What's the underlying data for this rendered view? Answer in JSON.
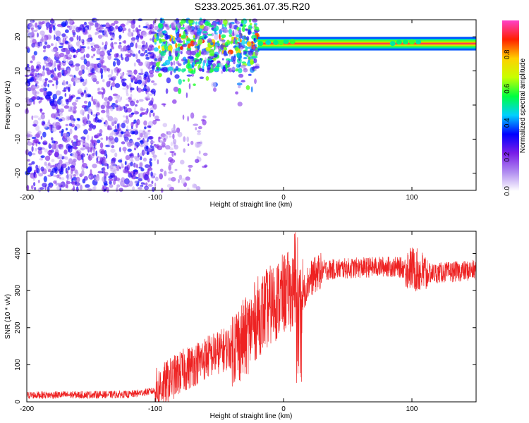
{
  "title": "S233.2025.361.07.35.R20",
  "chart_data": [
    {
      "type": "heatmap",
      "name": "spectrogram",
      "xlabel": "Height of straight line (km)",
      "ylabel": "Frequency (Hz)",
      "xlim": [
        -200,
        150
      ],
      "ylim": [
        -25,
        25
      ],
      "xticks": [
        -200,
        -100,
        0,
        100
      ],
      "yticks": [
        -20,
        -10,
        0,
        10,
        20
      ],
      "colorbar": {
        "label": "Normalized spectral amplitude",
        "range": [
          0,
          1
        ],
        "ticks": [
          "0.0",
          "0.2",
          "0.4",
          "0.6",
          "0.8"
        ],
        "colors": [
          "#ffffff",
          "#b08cf0",
          "#7a1ee8",
          "#0000ff",
          "#00d0ff",
          "#00ff40",
          "#c8ff00",
          "#ffd000",
          "#ff2000",
          "#ff40c8"
        ]
      },
      "signal": {
        "frequency_hz": 18,
        "start_km": -20,
        "end_km": 150,
        "amplitude": 1.0
      },
      "noise": {
        "start_km": -200,
        "end_km": -100,
        "amplitude": 0.3
      },
      "transition": {
        "start_km": -100,
        "end_km": -20,
        "frequency_range_hz": [
          10,
          25
        ],
        "amplitude": 0.6
      }
    },
    {
      "type": "line",
      "name": "snr",
      "xlabel": "Height of straight line (km)",
      "ylabel": "SNR (10 * v/v)",
      "xlim": [
        -200,
        150
      ],
      "ylim": [
        0,
        460
      ],
      "xticks": [
        -200,
        -100,
        0,
        100
      ],
      "yticks": [
        0,
        100,
        200,
        300,
        400
      ],
      "color": "#ee2222",
      "profile": {
        "x": [
          -200,
          -120,
          -100,
          -90,
          -80,
          -60,
          -40,
          -30,
          -20,
          -10,
          0,
          5,
          10,
          15,
          20,
          30,
          50,
          80,
          100,
          110,
          150
        ],
        "y": [
          18,
          20,
          30,
          55,
          80,
          120,
          150,
          170,
          230,
          260,
          290,
          300,
          280,
          290,
          330,
          355,
          360,
          365,
          360,
          345,
          355
        ]
      }
    }
  ]
}
